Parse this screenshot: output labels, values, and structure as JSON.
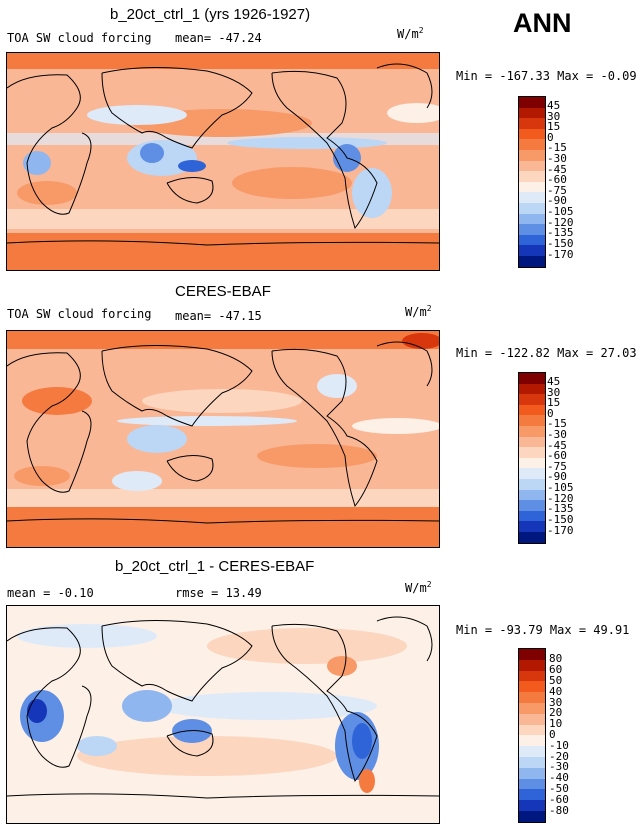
{
  "season": "ANN",
  "units": "W/m",
  "units_exp": "2",
  "panels": [
    {
      "title": "b_20ct_ctrl_1 (yrs 1926-1927)",
      "subtitle_left": "TOA SW cloud forcing",
      "mean_text": "mean= -47.24",
      "minmax_text": "Min = -167.33 Max =  -0.09",
      "colorbar_labels": [
        "45",
        "30",
        "15",
        "0",
        "-15",
        "-30",
        "-45",
        "-60",
        "-75",
        "-90",
        "-105",
        "-120",
        "-135",
        "-150",
        "-170"
      ]
    },
    {
      "title": "CERES-EBAF",
      "subtitle_left": "TOA SW cloud forcing",
      "mean_text": "mean= -47.15",
      "minmax_text": "Min = -122.82 Max =  27.03",
      "colorbar_labels": [
        "45",
        "30",
        "15",
        "0",
        "-15",
        "-30",
        "-45",
        "-60",
        "-75",
        "-90",
        "-105",
        "-120",
        "-135",
        "-150",
        "-170"
      ]
    },
    {
      "title": "b_20ct_ctrl_1 - CERES-EBAF",
      "subtitle_left": "mean =  -0.10",
      "rmse_text": "rmse =  13.49",
      "minmax_text": "Min = -93.79 Max =  49.91",
      "colorbar_labels": [
        "80",
        "60",
        "50",
        "40",
        "30",
        "20",
        "10",
        "0",
        "-10",
        "-20",
        "-30",
        "-40",
        "-50",
        "-60",
        "-80"
      ]
    }
  ],
  "colors": {
    "colorbar": [
      "#7f0000",
      "#b21900",
      "#d8360c",
      "#f25a1e",
      "#f57a40",
      "#f79a68",
      "#f9b795",
      "#fcd6bf",
      "#fdf0e6",
      "#dfeaf9",
      "#bcd6f5",
      "#8fb6ee",
      "#5e8fe5",
      "#2f64d8",
      "#1536b8",
      "#00177f"
    ]
  }
}
